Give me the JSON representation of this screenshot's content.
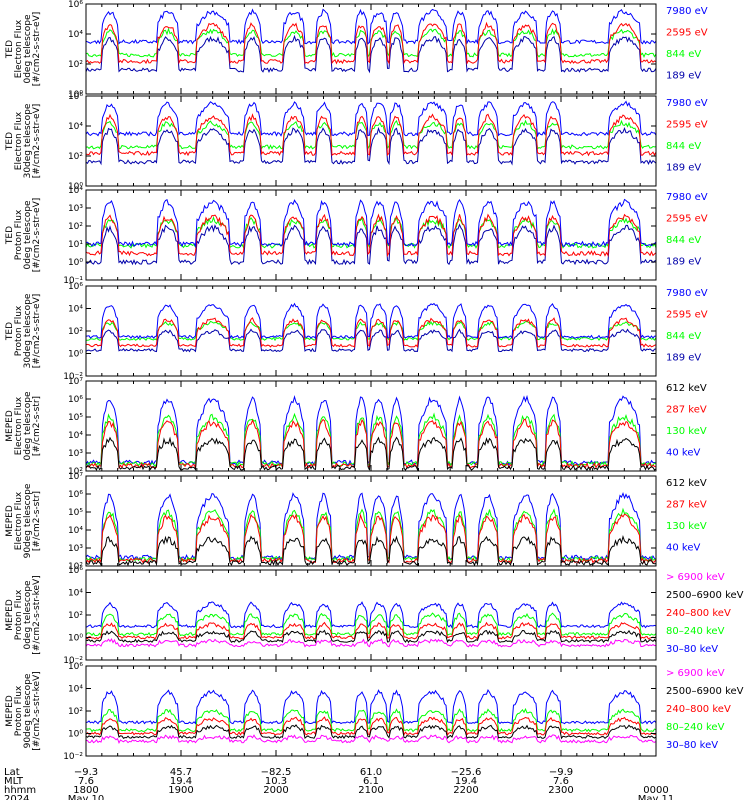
{
  "chart_data": [
    {
      "type": "line",
      "instrument": "TED",
      "title": "Electron Flux",
      "ylabel_lines": [
        "TED",
        "Electron Flux",
        "0deg telescope",
        "[#/cm2-s-str-eV]"
      ],
      "ylim": [
        1,
        1000000
      ],
      "y_scale": "log",
      "y_ticks": [
        {
          "v": 1,
          "label": "10⁰"
        },
        {
          "v": 100,
          "label": "10²"
        },
        {
          "v": 10000,
          "label": "10⁴"
        },
        {
          "v": 1000000,
          "label": "10⁶"
        }
      ],
      "series": [
        {
          "name": "7980 eV",
          "color": "#0000ff",
          "base": 3000,
          "peak": 300000
        },
        {
          "name": "2595 eV",
          "color": "#ff0000",
          "base": 150,
          "peak": 40000
        },
        {
          "name": "844 eV",
          "color": "#00ff00",
          "base": 400,
          "peak": 15000
        },
        {
          "name": "189 eV",
          "color": "#0000aa",
          "base": 40,
          "peak": 5000
        }
      ]
    },
    {
      "type": "line",
      "instrument": "TED",
      "title": "Electron Flux",
      "ylabel_lines": [
        "TED",
        "Electron Flux",
        "30deg telescope",
        "[#/cm2-s-str-eV]"
      ],
      "ylim": [
        1,
        1000000
      ],
      "y_scale": "log",
      "y_ticks": [
        {
          "v": 1,
          "label": "10⁰"
        },
        {
          "v": 100,
          "label": "10²"
        },
        {
          "v": 10000,
          "label": "10⁴"
        },
        {
          "v": 1000000,
          "label": "10⁶"
        }
      ],
      "series": [
        {
          "name": "7980 eV",
          "color": "#0000ff",
          "base": 3000,
          "peak": 300000
        },
        {
          "name": "2595 eV",
          "color": "#ff0000",
          "base": 150,
          "peak": 40000
        },
        {
          "name": "844 eV",
          "color": "#00ff00",
          "base": 400,
          "peak": 15000
        },
        {
          "name": "189 eV",
          "color": "#0000aa",
          "base": 40,
          "peak": 5000
        }
      ]
    },
    {
      "type": "line",
      "instrument": "TED",
      "title": "Proton Flux",
      "ylabel_lines": [
        "TED",
        "Proton Flux",
        "0deg telescope",
        "[#/cm2-s-str-eV]"
      ],
      "ylim": [
        0.1,
        10000
      ],
      "y_scale": "log",
      "y_ticks": [
        {
          "v": 0.1,
          "label": "10⁻¹"
        },
        {
          "v": 1,
          "label": "10⁰"
        },
        {
          "v": 10,
          "label": "10¹"
        },
        {
          "v": 100,
          "label": "10²"
        },
        {
          "v": 1000,
          "label": "10³"
        },
        {
          "v": 10000,
          "label": "10⁴"
        }
      ],
      "series": [
        {
          "name": "7980 eV",
          "color": "#0000ff",
          "base": 10,
          "peak": 2000
        },
        {
          "name": "2595 eV",
          "color": "#ff0000",
          "base": 3,
          "peak": 300
        },
        {
          "name": "844 eV",
          "color": "#00ff00",
          "base": 8,
          "peak": 200
        },
        {
          "name": "189 eV",
          "color": "#0000aa",
          "base": 1,
          "peak": 80
        }
      ]
    },
    {
      "type": "line",
      "instrument": "TED",
      "title": "Proton Flux",
      "ylabel_lines": [
        "TED",
        "Proton Flux",
        "30deg telescope",
        "[#/cm2-s-str-eV]"
      ],
      "ylim": [
        0.01,
        1000000
      ],
      "y_scale": "log",
      "y_ticks": [
        {
          "v": 0.01,
          "label": "10⁻²"
        },
        {
          "v": 1,
          "label": "10⁰"
        },
        {
          "v": 100,
          "label": "10²"
        },
        {
          "v": 10000,
          "label": "10⁴"
        },
        {
          "v": 1000000,
          "label": "10⁶"
        }
      ],
      "series": [
        {
          "name": "7980 eV",
          "color": "#0000ff",
          "base": 30,
          "peak": 20000
        },
        {
          "name": "2595 eV",
          "color": "#ff0000",
          "base": 5,
          "peak": 1000
        },
        {
          "name": "844 eV",
          "color": "#00ff00",
          "base": 20,
          "peak": 500
        },
        {
          "name": "189 eV",
          "color": "#0000aa",
          "base": 2,
          "peak": 100
        }
      ]
    },
    {
      "type": "line",
      "instrument": "MEPED",
      "title": "Electron Flux",
      "ylabel_lines": [
        "MEPED",
        "Electron Flux",
        "0deg telescope",
        "[#/cm2-s-str]"
      ],
      "ylim": [
        100,
        10000000
      ],
      "y_scale": "log",
      "y_ticks": [
        {
          "v": 100,
          "label": "10²"
        },
        {
          "v": 1000,
          "label": "10³"
        },
        {
          "v": 10000,
          "label": "10⁴"
        },
        {
          "v": 100000,
          "label": "10⁵"
        },
        {
          "v": 1000000,
          "label": "10⁶"
        },
        {
          "v": 10000000,
          "label": "10⁷"
        }
      ],
      "series": [
        {
          "name": "612 keV",
          "color": "#000000",
          "base": 150,
          "peak": 5000
        },
        {
          "name": "287 keV",
          "color": "#ff0000",
          "base": 200,
          "peak": 50000
        },
        {
          "name": "130 keV",
          "color": "#00ff00",
          "base": 250,
          "peak": 100000
        },
        {
          "name": "40 keV",
          "color": "#0000ff",
          "base": 300,
          "peak": 1000000
        }
      ]
    },
    {
      "type": "line",
      "instrument": "MEPED",
      "title": "Electron Flux",
      "ylabel_lines": [
        "MEPED",
        "Electron Flux",
        "90deg telescope",
        "[#/cm2-s-str]"
      ],
      "ylim": [
        100,
        10000000
      ],
      "y_scale": "log",
      "y_ticks": [
        {
          "v": 100,
          "label": "10²"
        },
        {
          "v": 1000,
          "label": "10³"
        },
        {
          "v": 10000,
          "label": "10⁴"
        },
        {
          "v": 100000,
          "label": "10⁵"
        },
        {
          "v": 1000000,
          "label": "10⁶"
        },
        {
          "v": 10000000,
          "label": "10⁷"
        }
      ],
      "series": [
        {
          "name": "612 keV",
          "color": "#000000",
          "base": 150,
          "peak": 3000
        },
        {
          "name": "287 keV",
          "color": "#ff0000",
          "base": 200,
          "peak": 50000
        },
        {
          "name": "130 keV",
          "color": "#00ff00",
          "base": 250,
          "peak": 100000
        },
        {
          "name": "40 keV",
          "color": "#0000ff",
          "base": 300,
          "peak": 800000
        }
      ]
    },
    {
      "type": "line",
      "instrument": "MEPED",
      "title": "Proton Flux",
      "ylabel_lines": [
        "MEPED",
        "Proton Flux",
        "0deg telescope",
        "[#/cm2-s-str-keV]"
      ],
      "ylim": [
        0.01,
        1000000
      ],
      "y_scale": "log",
      "y_ticks": [
        {
          "v": 0.01,
          "label": "10⁻²"
        },
        {
          "v": 1,
          "label": "10⁰"
        },
        {
          "v": 100,
          "label": "10²"
        },
        {
          "v": 10000,
          "label": "10⁴"
        },
        {
          "v": 1000000,
          "label": "10⁶"
        }
      ],
      "series": [
        {
          "name": "> 6900 keV",
          "color": "#ff00ff",
          "base": 0.2,
          "peak": 0.5
        },
        {
          "name": "2500–6900 keV",
          "color": "#000000",
          "base": 0.5,
          "peak": 3
        },
        {
          "name": "240–800 keV",
          "color": "#ff0000",
          "base": 1,
          "peak": 15
        },
        {
          "name": "80–240 keV",
          "color": "#00ff00",
          "base": 2,
          "peak": 100
        },
        {
          "name": "30–80 keV",
          "color": "#0000ff",
          "base": 10,
          "peak": 1000
        }
      ]
    },
    {
      "type": "line",
      "instrument": "MEPED",
      "title": "Proton Flux",
      "ylabel_lines": [
        "MEPED",
        "Proton Flux",
        "90deg telescope",
        "[#/cm2-s-str-keV]"
      ],
      "ylim": [
        0.01,
        1000000
      ],
      "y_scale": "log",
      "y_ticks": [
        {
          "v": 0.01,
          "label": "10⁻²"
        },
        {
          "v": 1,
          "label": "10⁰"
        },
        {
          "v": 100,
          "label": "10²"
        },
        {
          "v": 10000,
          "label": "10⁴"
        },
        {
          "v": 1000000,
          "label": "10⁶"
        }
      ],
      "series": [
        {
          "name": "> 6900 keV",
          "color": "#ff00ff",
          "base": 0.2,
          "peak": 0.5
        },
        {
          "name": "2500–6900 keV",
          "color": "#000000",
          "base": 0.5,
          "peak": 4
        },
        {
          "name": "240–800 keV",
          "color": "#ff0000",
          "base": 1,
          "peak": 20
        },
        {
          "name": "80–240 keV",
          "color": "#00ff00",
          "base": 2,
          "peak": 100
        },
        {
          "name": "30–80 keV",
          "color": "#0000ff",
          "base": 10,
          "peak": 5000
        }
      ]
    }
  ],
  "time_axis": {
    "x_range_minutes": [
      0,
      360
    ],
    "minor_tick_every_minutes": 10,
    "row_labels": [
      "Lat",
      "MLT",
      "hhmm",
      "2024"
    ],
    "ticks": [
      {
        "minute": 0,
        "lat": "−9.3",
        "mlt": "7.6",
        "hhmm": "1800",
        "date": "May 10"
      },
      {
        "minute": 60,
        "lat": "45.7",
        "mlt": "19.4",
        "hhmm": "1900",
        "date": ""
      },
      {
        "minute": 120,
        "lat": "−82.5",
        "mlt": "10.3",
        "hhmm": "2000",
        "date": ""
      },
      {
        "minute": 180,
        "lat": "61.0",
        "mlt": "6.1",
        "hhmm": "2100",
        "date": ""
      },
      {
        "minute": 240,
        "lat": "−25.6",
        "mlt": "19.4",
        "hhmm": "2200",
        "date": ""
      },
      {
        "minute": 300,
        "lat": "−9.9",
        "mlt": "7.6",
        "hhmm": "2300",
        "date": ""
      },
      {
        "minute": 360,
        "lat": "",
        "mlt": "",
        "hhmm": "0000",
        "date": "May 11"
      }
    ]
  },
  "pass_windows_minutes": [
    [
      10,
      20
    ],
    [
      45,
      58
    ],
    [
      70,
      90
    ],
    [
      100,
      110
    ],
    [
      125,
      138
    ],
    [
      145,
      155
    ],
    [
      170,
      178
    ],
    [
      180,
      190
    ],
    [
      192,
      200
    ],
    [
      210,
      228
    ],
    [
      232,
      240
    ],
    [
      248,
      260
    ],
    [
      270,
      285
    ],
    [
      290,
      300
    ],
    [
      330,
      350
    ]
  ]
}
